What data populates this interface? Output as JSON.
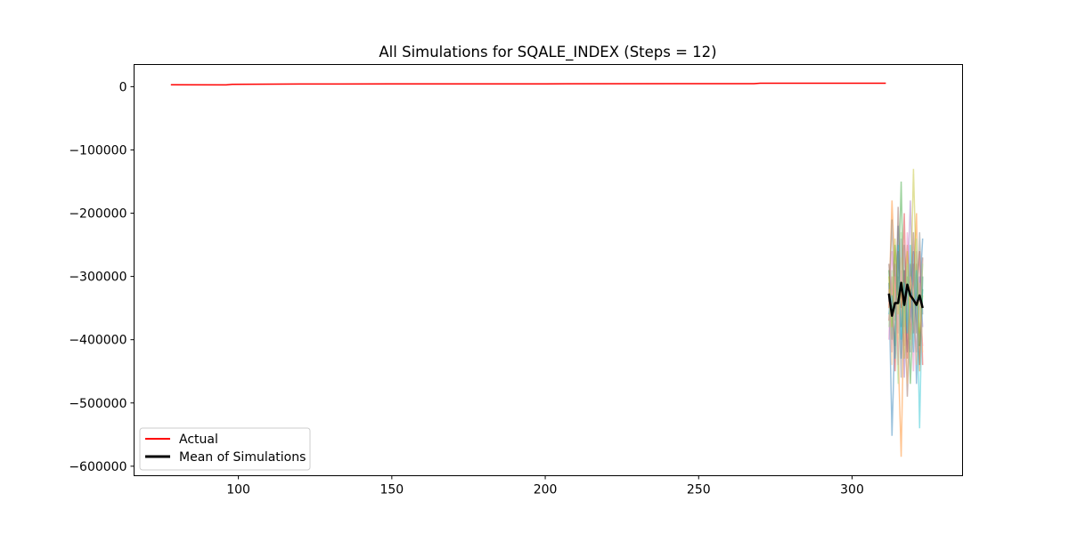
{
  "chart_data": {
    "type": "line",
    "title": "All Simulations for SQALE_INDEX (Steps = 12)",
    "xlabel": "",
    "ylabel": "",
    "xlim": [
      66,
      336
    ],
    "ylim": [
      -615000,
      35000
    ],
    "x_ticks": [
      100,
      150,
      200,
      250,
      300
    ],
    "x_tick_labels": [
      "100",
      "150",
      "200",
      "250",
      "300"
    ],
    "y_ticks": [
      0,
      -100000,
      -200000,
      -300000,
      -400000,
      -500000,
      -600000
    ],
    "y_tick_labels": [
      "0",
      "−100000",
      "−200000",
      "−300000",
      "−400000",
      "−500000",
      "−600000"
    ],
    "grid": false,
    "legend_position": "lower-left",
    "legend": [
      "Actual",
      "Mean of Simulations"
    ],
    "colors": {
      "actual": "#ff0000",
      "mean": "#000000",
      "simulations": [
        "#1f77b4",
        "#ff7f0e",
        "#2ca02c",
        "#d62728",
        "#9467bd",
        "#8c564b",
        "#e377c2",
        "#7f7f7f",
        "#bcbd22",
        "#17becf",
        "#ffbb78",
        "#98df8a"
      ]
    },
    "series": [
      {
        "name": "Actual",
        "x": [
          78,
          96,
          98,
          120,
          150,
          200,
          250,
          268,
          270,
          290,
          311
        ],
        "values": [
          3000,
          2800,
          3800,
          4200,
          4300,
          4500,
          4700,
          4800,
          5400,
          5500,
          5500
        ]
      },
      {
        "name": "Mean of Simulations",
        "x": [
          312,
          313,
          314,
          315,
          316,
          317,
          318,
          319,
          320,
          321,
          322,
          323
        ],
        "values": [
          -327000,
          -362000,
          -342000,
          -342000,
          -310000,
          -345000,
          -313000,
          -330000,
          -337000,
          -345000,
          -330000,
          -350000
        ]
      }
    ],
    "simulations": [
      {
        "x": [
          312,
          313,
          314,
          315,
          316,
          317,
          318,
          319,
          320,
          321,
          322,
          323
        ],
        "values": [
          -310000,
          -552000,
          -380000,
          -220000,
          -430000,
          -290000,
          -420000,
          -360000,
          -260000,
          -470000,
          -330000,
          -240000
        ]
      },
      {
        "x": [
          312,
          313,
          314,
          315,
          316,
          317,
          318,
          319,
          320,
          321,
          322,
          323
        ],
        "values": [
          -350000,
          -180000,
          -300000,
          -420000,
          -585000,
          -330000,
          -250000,
          -400000,
          -310000,
          -200000,
          -450000,
          -300000
        ]
      },
      {
        "x": [
          312,
          313,
          314,
          315,
          316,
          317,
          318,
          319,
          320,
          321,
          322,
          323
        ],
        "values": [
          -290000,
          -400000,
          -250000,
          -330000,
          -150000,
          -380000,
          -300000,
          -470000,
          -350000,
          -280000,
          -410000,
          -320000
        ]
      },
      {
        "x": [
          312,
          313,
          314,
          315,
          316,
          317,
          318,
          319,
          320,
          321,
          322,
          323
        ],
        "values": [
          -370000,
          -300000,
          -450000,
          -260000,
          -350000,
          -200000,
          -430000,
          -280000,
          -390000,
          -330000,
          -260000,
          -440000
        ]
      },
      {
        "x": [
          312,
          313,
          314,
          315,
          316,
          317,
          318,
          319,
          320,
          321,
          322,
          323
        ],
        "values": [
          -330000,
          -420000,
          -280000,
          -390000,
          -240000,
          -460000,
          -330000,
          -180000,
          -360000,
          -420000,
          -300000,
          -380000
        ]
      },
      {
        "x": [
          312,
          313,
          314,
          315,
          316,
          317,
          318,
          319,
          320,
          321,
          322,
          323
        ],
        "values": [
          -280000,
          -350000,
          -410000,
          -190000,
          -380000,
          -290000,
          -490000,
          -340000,
          -230000,
          -370000,
          -440000,
          -270000
        ]
      },
      {
        "x": [
          312,
          313,
          314,
          315,
          316,
          317,
          318,
          319,
          320,
          321,
          322,
          323
        ],
        "values": [
          -400000,
          -260000,
          -330000,
          -440000,
          -290000,
          -410000,
          -230000,
          -310000,
          -450000,
          -260000,
          -350000,
          -410000
        ]
      },
      {
        "x": [
          312,
          313,
          314,
          315,
          316,
          317,
          318,
          319,
          320,
          321,
          322,
          323
        ],
        "values": [
          -340000,
          -210000,
          -370000,
          -300000,
          -460000,
          -250000,
          -370000,
          -420000,
          -280000,
          -390000,
          -230000,
          -360000
        ]
      },
      {
        "x": [
          312,
          313,
          314,
          315,
          316,
          317,
          318,
          319,
          320,
          321,
          322,
          323
        ],
        "values": [
          -300000,
          -380000,
          -240000,
          -360000,
          -320000,
          -430000,
          -260000,
          -350000,
          -130000,
          -310000,
          -390000,
          -330000
        ]
      },
      {
        "x": [
          312,
          313,
          314,
          315,
          316,
          317,
          318,
          319,
          320,
          321,
          322,
          323
        ],
        "values": [
          -360000,
          -330000,
          -430000,
          -250000,
          -400000,
          -310000,
          -390000,
          -250000,
          -420000,
          -290000,
          -540000,
          -300000
        ]
      },
      {
        "x": [
          312,
          313,
          314,
          315,
          316,
          317,
          318,
          319,
          320,
          321,
          322,
          323
        ],
        "values": [
          -320000,
          -440000,
          -300000,
          -400000,
          -270000,
          -360000,
          -470000,
          -300000,
          -330000,
          -440000,
          -310000,
          -420000
        ]
      },
      {
        "x": [
          312,
          313,
          314,
          315,
          316,
          317,
          318,
          319,
          320,
          321,
          322,
          323
        ],
        "values": [
          -380000,
          -290000,
          -350000,
          -470000,
          -230000,
          -390000,
          -280000,
          -410000,
          -370000,
          -240000,
          -380000,
          -280000
        ]
      }
    ]
  }
}
